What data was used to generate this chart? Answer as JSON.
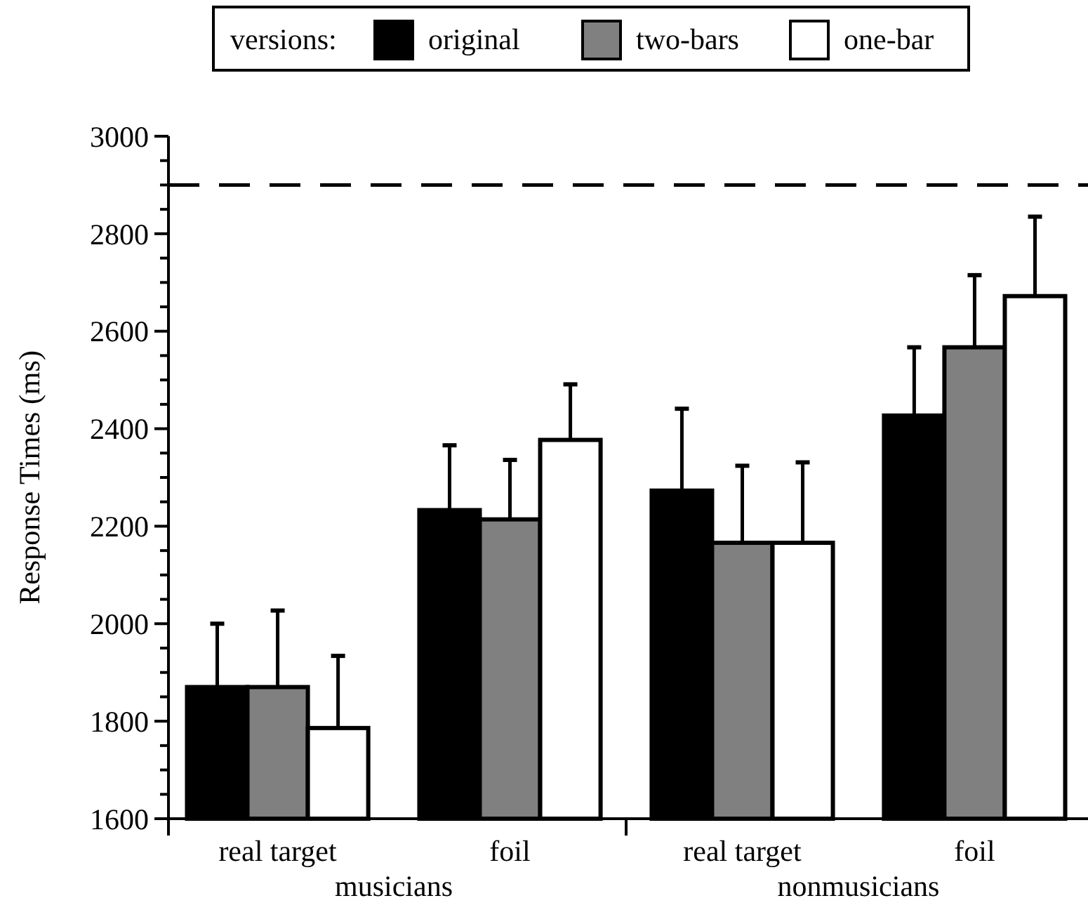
{
  "chart_data": {
    "type": "bar",
    "ylabel": "Response Times (ms)",
    "legend_title": "versions:",
    "legend": "top",
    "categories": [
      "real target",
      "foil",
      "real target",
      "foil"
    ],
    "series": [
      {
        "name": "original",
        "color": "#000000",
        "values": [
          1870,
          2233,
          2273,
          2427
        ],
        "errors": [
          [
            1870,
            2000
          ],
          [
            2233,
            2366
          ],
          [
            2273,
            2441
          ],
          [
            2427,
            2567
          ]
        ]
      },
      {
        "name": "two-bars",
        "color": "#808080",
        "values": [
          1870,
          2214,
          2166,
          2567
        ],
        "errors": [
          [
            1870,
            2027
          ],
          [
            2214,
            2336
          ],
          [
            2166,
            2324
          ],
          [
            2567,
            2715
          ]
        ]
      },
      {
        "name": "one-bar",
        "color": "#ffffff",
        "values": [
          1786,
          2377,
          2166,
          2672
        ],
        "errors": [
          [
            1786,
            1934
          ],
          [
            2377,
            2491
          ],
          [
            2166,
            2331
          ],
          [
            2672,
            2835
          ]
        ]
      }
    ],
    "annotations": [
      "musicians",
      "nonmusicians"
    ],
    "ref_lines": [
      {
        "axis": "y",
        "value": 2900,
        "line_style": "dashed",
        "color": "#000000"
      }
    ],
    "ylim": [
      1600,
      3000
    ],
    "yticks": [
      1600,
      {
        "value": 1650,
        "label": null
      },
      {
        "value": 1700,
        "label": null
      },
      {
        "value": 1750,
        "label": null
      },
      1800,
      {
        "value": 1850,
        "label": null
      },
      {
        "value": 1900,
        "label": null
      },
      {
        "value": 1950,
        "label": null
      },
      2000,
      {
        "value": 2050,
        "label": null
      },
      {
        "value": 2100,
        "label": null
      },
      {
        "value": 2150,
        "label": null
      },
      2200,
      {
        "value": 2250,
        "label": null
      },
      {
        "value": 2300,
        "label": null
      },
      {
        "value": 2350,
        "label": null
      },
      2400,
      {
        "value": 2450,
        "label": null
      },
      {
        "value": 2500,
        "label": null
      },
      {
        "value": 2550,
        "label": null
      },
      2600,
      {
        "value": 2650,
        "label": null
      },
      {
        "value": 2700,
        "label": null
      },
      {
        "value": 2750,
        "label": null
      },
      2800,
      {
        "value": 2850,
        "label": null
      },
      {
        "value": 2900,
        "label": null
      },
      {
        "value": 2950,
        "label": null
      },
      3000
    ],
    "grid": false
  }
}
